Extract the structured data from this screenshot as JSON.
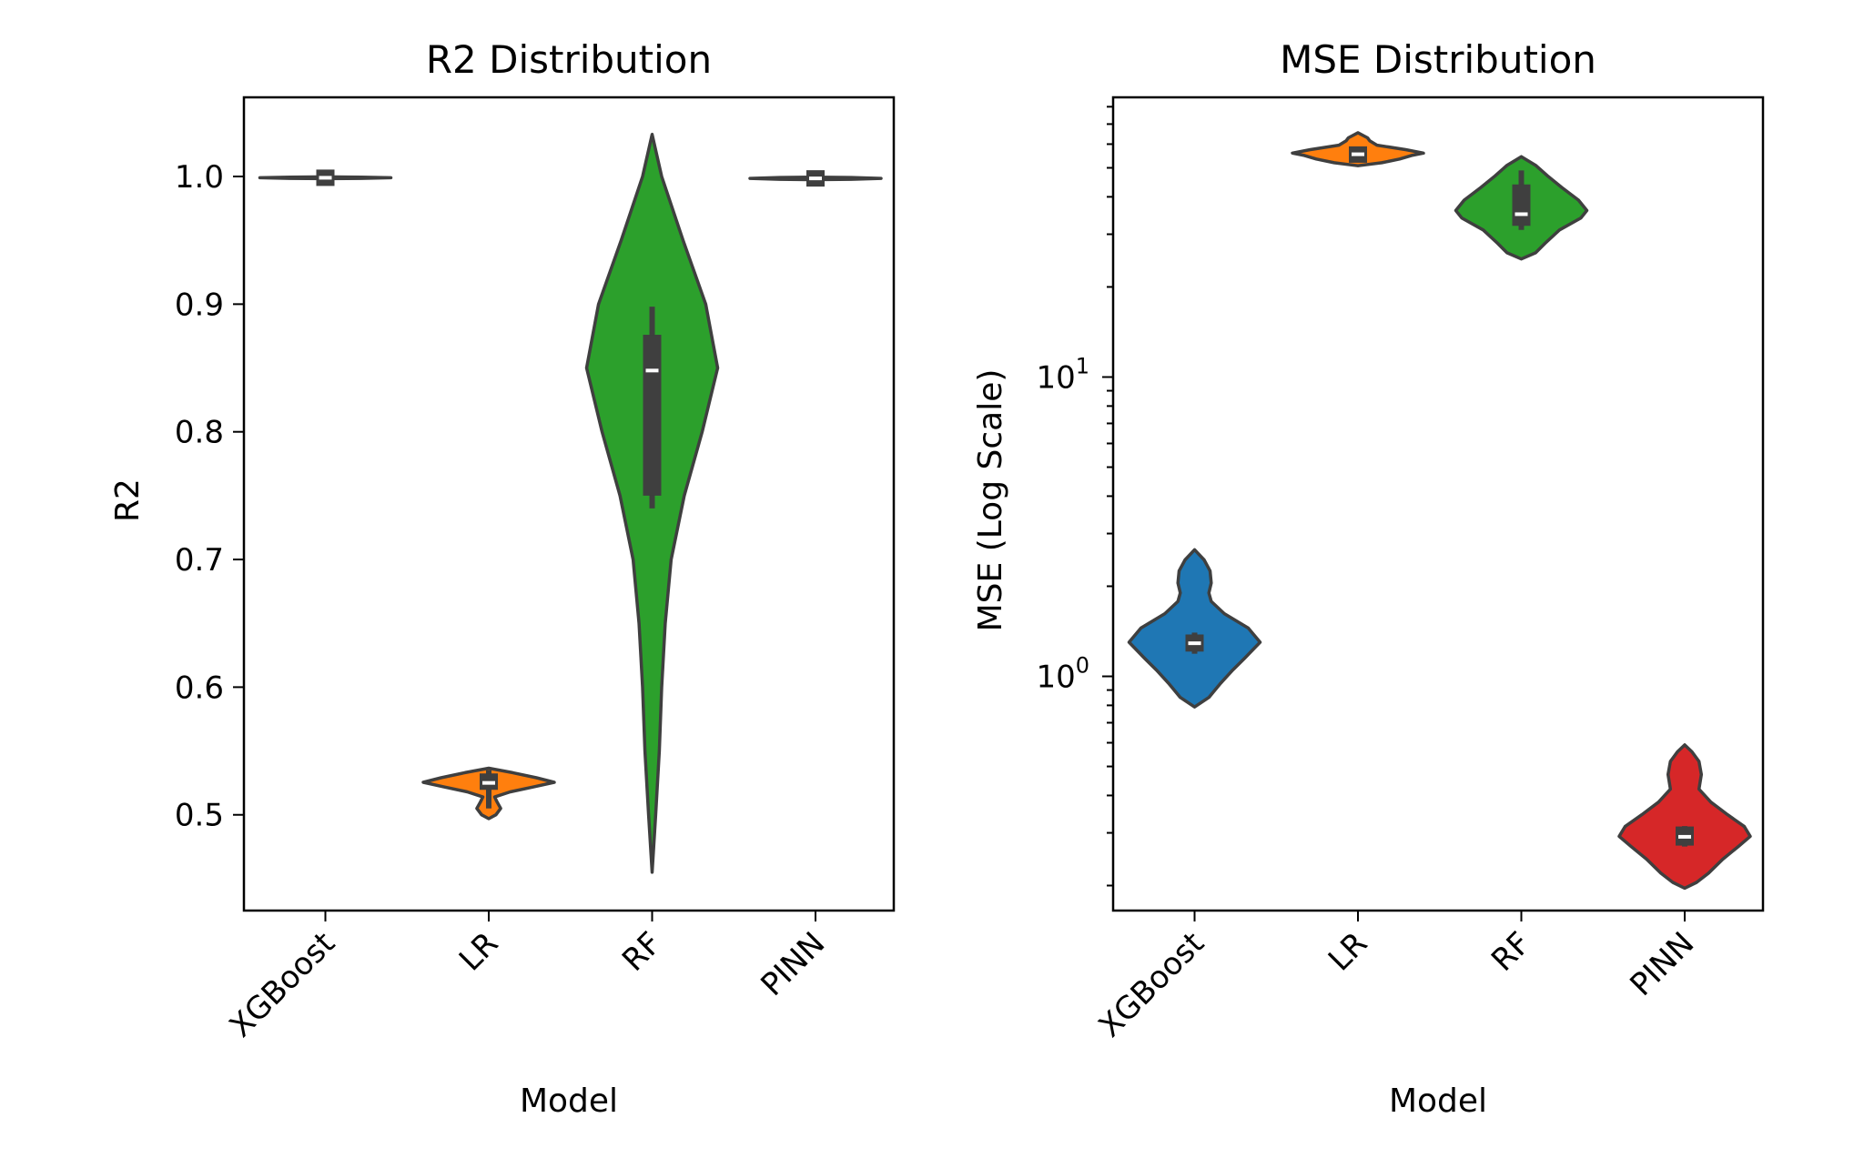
{
  "chart_data": [
    {
      "type": "violin",
      "title": "R2 Distribution",
      "xlabel": "Model",
      "ylabel": "R2",
      "yscale": "linear",
      "ylim": [
        0.425,
        1.062
      ],
      "yticks": [
        0.5,
        0.6,
        0.7,
        0.8,
        0.9,
        1.0
      ],
      "ytick_labels": [
        "0.5",
        "0.6",
        "0.7",
        "0.8",
        "0.9",
        "1.0"
      ],
      "categories": [
        "XGBoost",
        "LR",
        "RF",
        "PINN"
      ],
      "series": [
        {
          "name": "XGBoost",
          "color": "#1f77b4",
          "median": 0.999,
          "q1": 0.9985,
          "q3": 0.9995,
          "whisker_low": 0.9985,
          "whisker_high": 0.9995,
          "density": [
            [
              0.9983,
              0
            ],
            [
              0.9985,
              30
            ],
            [
              0.999,
              55
            ],
            [
              0.9995,
              30
            ],
            [
              0.9997,
              0
            ]
          ]
        },
        {
          "name": "LR",
          "color": "#ff7f0e",
          "median": 0.525,
          "q1": 0.52,
          "q3": 0.532,
          "whisker_low": 0.505,
          "whisker_high": 0.535,
          "density": [
            [
              0.497,
              0
            ],
            [
              0.5,
              6
            ],
            [
              0.505,
              10
            ],
            [
              0.51,
              7
            ],
            [
              0.514,
              5
            ],
            [
              0.518,
              18
            ],
            [
              0.522,
              38
            ],
            [
              0.5255,
              55
            ],
            [
              0.529,
              40
            ],
            [
              0.533,
              20
            ],
            [
              0.5365,
              0
            ]
          ]
        },
        {
          "name": "RF",
          "color": "#2ca02c",
          "median": 0.848,
          "q1": 0.75,
          "q3": 0.876,
          "whisker_low": 0.74,
          "whisker_high": 0.898,
          "density": [
            [
              0.455,
              0
            ],
            [
              0.5,
              3
            ],
            [
              0.55,
              6
            ],
            [
              0.6,
              8
            ],
            [
              0.65,
              11
            ],
            [
              0.7,
              16
            ],
            [
              0.75,
              27
            ],
            [
              0.8,
              42
            ],
            [
              0.85,
              55
            ],
            [
              0.9,
              45
            ],
            [
              0.95,
              26
            ],
            [
              1.0,
              8
            ],
            [
              1.033,
              0
            ]
          ]
        },
        {
          "name": "PINN",
          "color": "#d62728",
          "median": 0.9985,
          "q1": 0.9978,
          "q3": 0.9992,
          "whisker_low": 0.9978,
          "whisker_high": 0.9992,
          "density": [
            [
              0.9975,
              0
            ],
            [
              0.9978,
              30
            ],
            [
              0.9985,
              55
            ],
            [
              0.9992,
              30
            ],
            [
              0.9995,
              0
            ]
          ]
        }
      ]
    },
    {
      "type": "violin",
      "title": "MSE Distribution",
      "xlabel": "Model",
      "ylabel": "MSE (Log Scale)",
      "yscale": "log",
      "ylim": [
        0.165,
        86
      ],
      "yticks": [
        1,
        10
      ],
      "ytick_labels": [
        {
          "base": "10",
          "exp": "0"
        },
        {
          "base": "10",
          "exp": "1"
        }
      ],
      "minor_yticks": [
        0.2,
        0.3,
        0.4,
        0.5,
        0.6,
        0.7,
        0.8,
        0.9,
        2,
        3,
        4,
        5,
        6,
        7,
        8,
        9,
        20,
        30,
        40,
        50,
        60,
        70,
        80
      ],
      "categories": [
        "XGBoost",
        "LR",
        "RF",
        "PINN"
      ],
      "series": [
        {
          "name": "XGBoost",
          "color": "#1f77b4",
          "median": 1.29,
          "q1": 1.21,
          "q3": 1.38,
          "whisker_low": 1.19,
          "whisker_high": 1.4,
          "density": [
            [
              0.79,
              0
            ],
            [
              0.85,
              12
            ],
            [
              0.95,
              22
            ],
            [
              1.05,
              32
            ],
            [
              1.15,
              42
            ],
            [
              1.3,
              55
            ],
            [
              1.45,
              45
            ],
            [
              1.62,
              25
            ],
            [
              1.78,
              14
            ],
            [
              1.9,
              12
            ],
            [
              2.05,
              14
            ],
            [
              2.25,
              13
            ],
            [
              2.45,
              8
            ],
            [
              2.65,
              0
            ]
          ]
        },
        {
          "name": "LR",
          "color": "#ff7f0e",
          "median": 55.5,
          "q1": 53.8,
          "q3": 57.0,
          "whisker_low": 53.5,
          "whisker_high": 57.5,
          "density": [
            [
              50.8,
              0
            ],
            [
              52.0,
              20
            ],
            [
              53.5,
              35
            ],
            [
              55.0,
              45
            ],
            [
              56.0,
              55
            ],
            [
              57.5,
              40
            ],
            [
              59.5,
              16
            ],
            [
              61.5,
              10
            ],
            [
              63.0,
              8
            ],
            [
              65.5,
              0
            ]
          ]
        },
        {
          "name": "RF",
          "color": "#2ca02c",
          "median": 35.0,
          "q1": 32.0,
          "q3": 44.0,
          "whisker_low": 31.0,
          "whisker_high": 49.0,
          "density": [
            [
              24.8,
              0
            ],
            [
              26.0,
              12
            ],
            [
              28.0,
              20
            ],
            [
              31.0,
              32
            ],
            [
              34.0,
              50
            ],
            [
              36.0,
              55
            ],
            [
              39.0,
              48
            ],
            [
              43.0,
              34
            ],
            [
              47.0,
              22
            ],
            [
              51.0,
              12
            ],
            [
              54.5,
              0
            ]
          ]
        },
        {
          "name": "PINN",
          "color": "#d62728",
          "median": 0.291,
          "q1": 0.272,
          "q3": 0.315,
          "whisker_low": 0.27,
          "whisker_high": 0.316,
          "density": [
            [
              0.196,
              0
            ],
            [
              0.205,
              10
            ],
            [
              0.22,
              20
            ],
            [
              0.245,
              32
            ],
            [
              0.27,
              45
            ],
            [
              0.292,
              55
            ],
            [
              0.315,
              50
            ],
            [
              0.345,
              36
            ],
            [
              0.38,
              22
            ],
            [
              0.42,
              12
            ],
            [
              0.47,
              14
            ],
            [
              0.52,
              12
            ],
            [
              0.56,
              6
            ],
            [
              0.59,
              0
            ]
          ]
        }
      ]
    }
  ]
}
